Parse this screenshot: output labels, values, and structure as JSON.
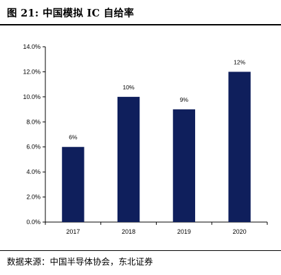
{
  "header": {
    "figure_label": "图 21:",
    "title": "中国模拟 IC 自给率"
  },
  "footer": {
    "source": "数据来源：中国半导体协会，东北证券"
  },
  "colors": {
    "bar": "#0f1f5c",
    "axis": "#000000"
  },
  "chart_data": {
    "type": "bar",
    "title": "",
    "xlabel": "",
    "ylabel": "",
    "categories": [
      "2017",
      "2018",
      "2019",
      "2020"
    ],
    "values": [
      6,
      10,
      9,
      12
    ],
    "data_labels": [
      "6%",
      "10%",
      "9%",
      "12%"
    ],
    "ylim": [
      0,
      14
    ],
    "y_ticks": [
      0,
      2,
      4,
      6,
      8,
      10,
      12,
      14
    ],
    "y_tick_labels": [
      "0.0%",
      "2.0%",
      "4.0%",
      "6.0%",
      "8.0%",
      "10.0%",
      "12.0%",
      "14.0%"
    ],
    "grid": false,
    "legend": "none"
  }
}
